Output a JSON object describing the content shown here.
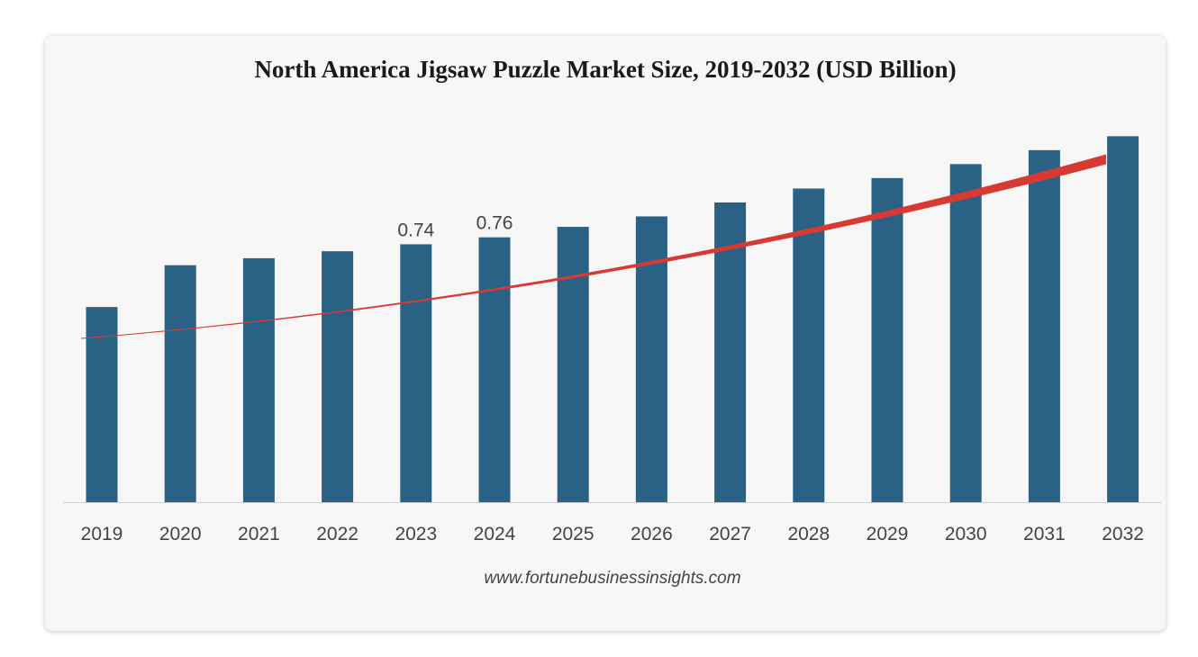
{
  "chart_data": {
    "type": "bar",
    "title": "North America Jigsaw Puzzle Market Size, 2019-2032 (USD Billion)",
    "xlabel": "",
    "ylabel": "",
    "categories": [
      "2019",
      "2020",
      "2021",
      "2022",
      "2023",
      "2024",
      "2025",
      "2026",
      "2027",
      "2028",
      "2029",
      "2030",
      "2031",
      "2032"
    ],
    "values": [
      0.56,
      0.68,
      0.7,
      0.72,
      0.74,
      0.76,
      0.79,
      0.82,
      0.86,
      0.9,
      0.93,
      0.97,
      1.01,
      1.05
    ],
    "data_labels": {
      "2023": "0.74",
      "2024": "0.76"
    },
    "ylim": [
      0,
      1.1
    ],
    "grid": false,
    "legend": "none",
    "bar_color": "#2a6285",
    "trend_arrow": {
      "color": "#d83a33",
      "direction": "upward"
    },
    "source": "www.fortunebusinessinsights.com"
  }
}
